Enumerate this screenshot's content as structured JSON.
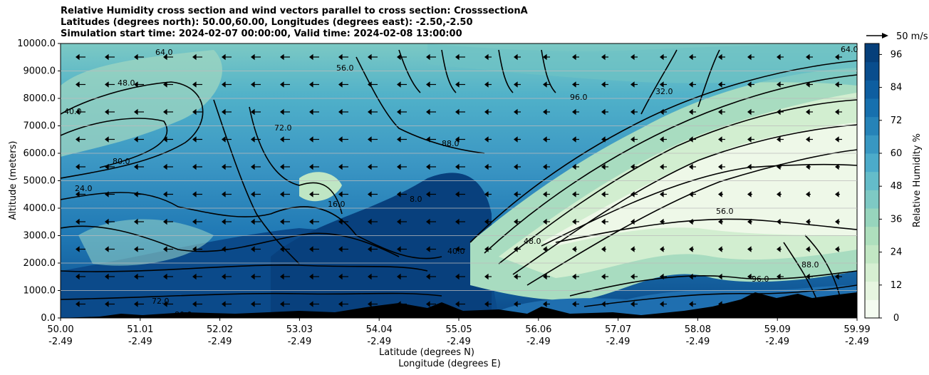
{
  "title": {
    "line1": "Relative Humidity cross section and wind vectors parallel to cross section: CrosssectionA",
    "line2": "Latitudes (degrees north): 50.00,60.00, Longitudes (degrees east): -2.50,-2.50",
    "line3": "Simulation start time: 2024-02-07 00:00:00, Valid time: 2024-02-08 13:00:00"
  },
  "chart_data": {
    "type": "contour",
    "ylabel": "Altitude (meters)",
    "xlabel_line1": "Latitude (degrees N)",
    "xlabel_line2": "Longitude (degrees E)",
    "ylim": [
      0,
      10000
    ],
    "yticks": [
      "0.0",
      "1000.0",
      "2000.0",
      "3000.0",
      "4000.0",
      "5000.0",
      "6000.0",
      "7000.0",
      "8000.0",
      "9000.0",
      "10000.0"
    ],
    "xticks_lat": [
      "50.00",
      "51.01",
      "52.02",
      "53.03",
      "54.04",
      "55.05",
      "56.06",
      "57.07",
      "58.08",
      "59.09",
      "59.99"
    ],
    "xticks_lon": [
      "-2.49",
      "-2.49",
      "-2.49",
      "-2.49",
      "-2.49",
      "-2.49",
      "-2.49",
      "-2.49",
      "-2.49",
      "-2.49",
      "-2.49"
    ],
    "colorbar": {
      "label": "Relative Humidity %",
      "ticks": [
        "0",
        "12",
        "24",
        "36",
        "48",
        "60",
        "72",
        "84",
        "96"
      ],
      "range": [
        0,
        100
      ]
    },
    "wind_key": "50 m/s",
    "contour_labels": [
      "64.0",
      "56.0",
      "48.0",
      "40.0",
      "72.0",
      "80.0",
      "88.0",
      "96.0",
      "8.0",
      "16.0",
      "24.0",
      "32.0"
    ]
  }
}
